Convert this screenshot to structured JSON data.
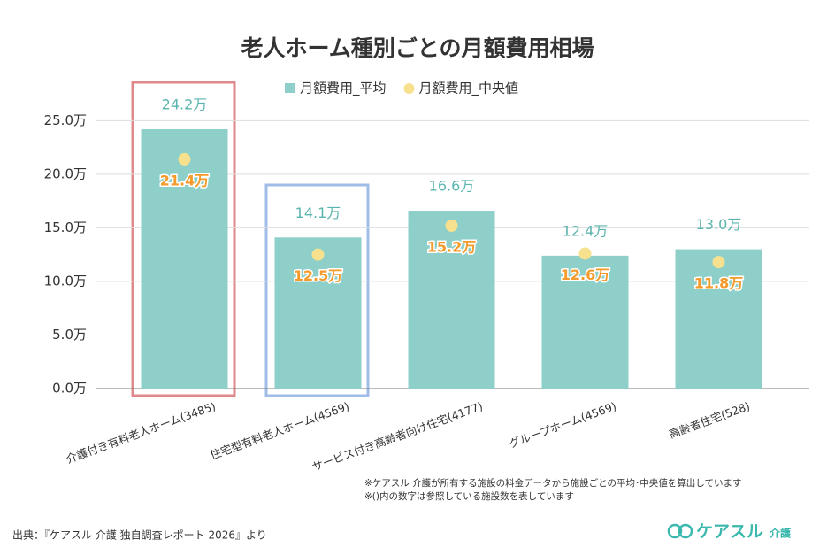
{
  "chart_data": {
    "type": "bar",
    "title": "老人ホーム種別ごとの月額費用相場",
    "categories": [
      "介護付き有料老人ホーム(3485)",
      "住宅型有料老人ホーム(4569)",
      "サービス付き高齢者向け住宅(4177)",
      "グループホーム(4569)",
      "高齢者住宅(528)"
    ],
    "series": [
      {
        "name": "月額費用_平均",
        "color": "#8ecfc9",
        "label_color": "#5bb5ae",
        "mark": "bar",
        "values": [
          24.2,
          14.1,
          16.6,
          12.4,
          13.0
        ],
        "value_labels": [
          "24.2万",
          "14.1万",
          "16.6万",
          "12.4万",
          "13.0万"
        ]
      },
      {
        "name": "月額費用_中央値",
        "color": "#f7e08e",
        "label_color": "#f39a2a",
        "mark": "dot",
        "values": [
          21.4,
          12.5,
          15.2,
          12.6,
          11.8
        ],
        "value_labels": [
          "21.4万",
          "12.5万",
          "15.2万",
          "12.6万",
          "11.8万"
        ]
      }
    ],
    "ylim": [
      0,
      28
    ],
    "yticks": [
      {
        "value": 0,
        "label": "0.0万"
      },
      {
        "value": 5,
        "label": "5.0万"
      },
      {
        "value": 10,
        "label": "10.0万"
      },
      {
        "value": 15,
        "label": "15.0万"
      },
      {
        "value": 20,
        "label": "20.0万"
      },
      {
        "value": 25,
        "label": "25.0万"
      }
    ],
    "grid": true,
    "legend": "top"
  },
  "notes": [
    "※ケアスル 介護が所有する施設の料金データから施設ごとの平均･中央値を算出しています",
    "※()内の数字は参照している施設数を表しています"
  ],
  "source": "出典：『ケアスル 介護 独自調査レポート 2026』より",
  "brand": {
    "name": "ケアスル",
    "sub": "介護"
  }
}
